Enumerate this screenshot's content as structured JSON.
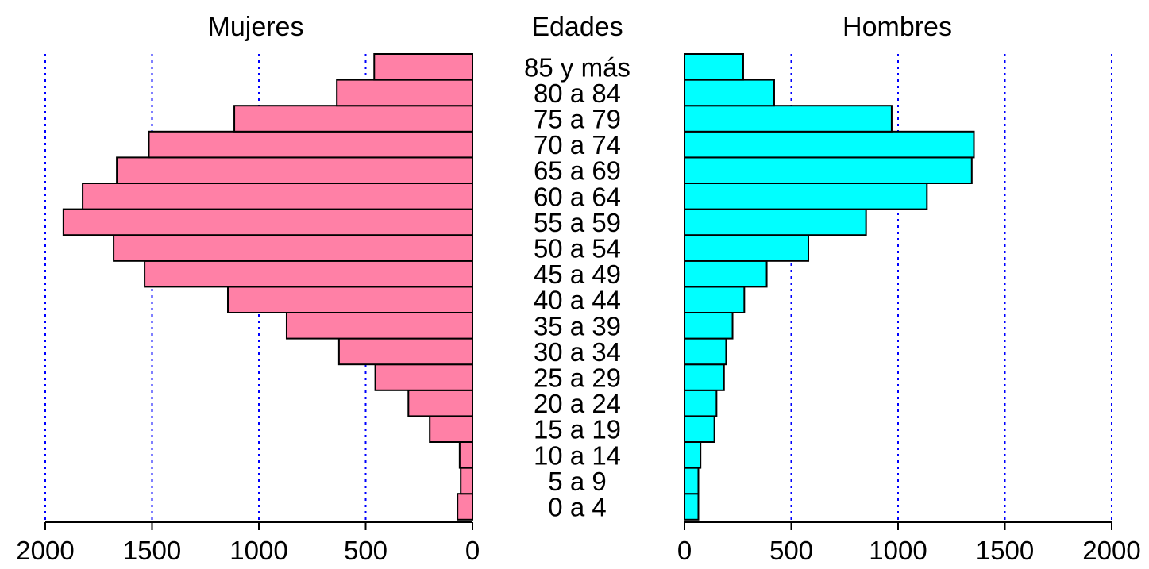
{
  "chart_data": {
    "type": "bar",
    "orientation": "horizontal",
    "layout": "population-pyramid",
    "center_label": "Edades",
    "categories": [
      "0 a 4",
      "5 a 9",
      "10 a 14",
      "15 a 19",
      "20 a 24",
      "25 a 29",
      "30 a 34",
      "35 a 39",
      "40 a 44",
      "45 a 49",
      "50 a 54",
      "55 a 59",
      "60 a 64",
      "65 a 69",
      "70 a 74",
      "75 a 79",
      "80 a 84",
      "85 y más"
    ],
    "series": [
      {
        "name": "Mujeres",
        "side": "left",
        "color": "#FF80A6",
        "values": [
          70,
          55,
          60,
          200,
          300,
          455,
          625,
          870,
          1145,
          1535,
          1680,
          1915,
          1825,
          1665,
          1515,
          1115,
          635,
          460
        ]
      },
      {
        "name": "Hombres",
        "side": "right",
        "color": "#00FFFF",
        "values": [
          65,
          65,
          75,
          140,
          150,
          185,
          195,
          225,
          280,
          385,
          580,
          850,
          1135,
          1345,
          1355,
          970,
          420,
          275
        ]
      }
    ],
    "xlim": [
      0,
      2000
    ],
    "xticks": [
      "0",
      "500",
      "1000",
      "1500",
      "2000"
    ],
    "xticks_left": [
      "2000",
      "1500",
      "1000",
      "500",
      "0"
    ],
    "gridlines": [
      500,
      1000,
      1500,
      2000
    ],
    "grid_color": "#0000FF",
    "bar_outline_color": "#000000"
  }
}
